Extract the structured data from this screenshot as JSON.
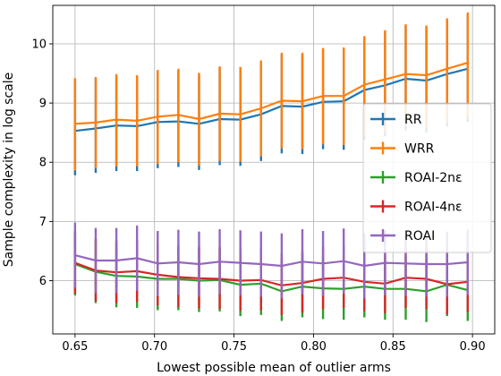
{
  "chart_data": {
    "type": "line",
    "xlabel": "Lowest possible mean of outlier arms",
    "ylabel": "Sample complexity in log scale",
    "xlim": [
      0.636,
      0.914
    ],
    "ylim": [
      5.1,
      10.65
    ],
    "grid": true,
    "legend_position": "center-right",
    "x_ticks": [
      "0.65",
      "0.70",
      "0.75",
      "0.80",
      "0.85",
      "0.90"
    ],
    "y_ticks": [
      "6",
      "7",
      "8",
      "9",
      "10"
    ],
    "x": [
      0.65,
      0.663,
      0.676,
      0.689,
      0.702,
      0.715,
      0.728,
      0.741,
      0.754,
      0.767,
      0.78,
      0.793,
      0.806,
      0.819,
      0.832,
      0.845,
      0.858,
      0.871,
      0.884,
      0.897
    ],
    "series": [
      {
        "name": "RR",
        "color": "#1f77b4",
        "values": [
          8.53,
          8.57,
          8.62,
          8.61,
          8.68,
          8.69,
          8.65,
          8.73,
          8.72,
          8.81,
          8.95,
          8.94,
          9.02,
          9.03,
          9.22,
          9.3,
          9.41,
          9.38,
          9.49,
          9.58
        ],
        "err_low": [
          7.78,
          7.82,
          7.85,
          7.85,
          7.9,
          7.92,
          7.87,
          7.95,
          7.94,
          8.02,
          8.15,
          8.14,
          8.22,
          8.21,
          8.38,
          8.44,
          8.54,
          8.5,
          8.6,
          8.68
        ],
        "err_high": [
          9.4,
          9.42,
          9.46,
          9.44,
          9.53,
          9.55,
          9.48,
          9.59,
          9.58,
          9.69,
          9.82,
          9.82,
          9.9,
          9.91,
          10.1,
          10.2,
          10.3,
          10.28,
          10.4,
          10.5
        ]
      },
      {
        "name": "WRR",
        "color": "#ff7f0e",
        "values": [
          8.65,
          8.67,
          8.72,
          8.7,
          8.77,
          8.8,
          8.73,
          8.82,
          8.81,
          8.91,
          9.04,
          9.03,
          9.12,
          9.12,
          9.31,
          9.4,
          9.49,
          9.47,
          9.58,
          9.68
        ],
        "err_low": [
          7.86,
          7.9,
          7.93,
          7.93,
          7.97,
          8.0,
          7.94,
          8.02,
          8.01,
          8.1,
          8.23,
          8.22,
          8.3,
          8.29,
          8.46,
          8.52,
          8.62,
          8.58,
          8.68,
          8.76
        ],
        "err_high": [
          9.42,
          9.44,
          9.49,
          9.47,
          9.56,
          9.58,
          9.51,
          9.62,
          9.61,
          9.72,
          9.85,
          9.85,
          9.93,
          9.94,
          10.13,
          10.23,
          10.33,
          10.31,
          10.43,
          10.53
        ]
      },
      {
        "name": "ROAI-2nε",
        "color": "#2ca02c",
        "values": [
          6.28,
          6.15,
          6.08,
          6.07,
          6.03,
          6.03,
          6.0,
          6.01,
          5.93,
          5.95,
          5.82,
          5.9,
          5.87,
          5.86,
          5.9,
          5.86,
          5.86,
          5.82,
          5.93,
          5.84
        ],
        "err_low": [
          5.75,
          5.62,
          5.55,
          5.54,
          5.5,
          5.5,
          5.47,
          5.48,
          5.4,
          5.42,
          5.32,
          5.38,
          5.35,
          5.34,
          5.38,
          5.34,
          5.34,
          5.3,
          5.4,
          5.32
        ],
        "err_high": [
          6.82,
          6.7,
          6.64,
          6.62,
          6.58,
          6.57,
          6.54,
          6.55,
          6.48,
          6.5,
          6.37,
          6.45,
          6.42,
          6.41,
          6.45,
          6.41,
          6.41,
          6.37,
          6.48,
          6.39
        ]
      },
      {
        "name": "ROAI-4nε",
        "color": "#d62728",
        "values": [
          6.3,
          6.17,
          6.14,
          6.16,
          6.1,
          6.06,
          6.04,
          6.03,
          6.0,
          6.01,
          5.92,
          5.96,
          6.03,
          6.05,
          5.98,
          5.95,
          6.05,
          6.03,
          5.94,
          5.98
        ],
        "err_low": [
          5.78,
          5.65,
          5.62,
          5.64,
          5.58,
          5.55,
          5.53,
          5.52,
          5.49,
          5.5,
          5.42,
          5.46,
          5.52,
          5.54,
          5.48,
          5.45,
          5.54,
          5.52,
          5.43,
          5.47
        ],
        "err_high": [
          6.84,
          6.71,
          6.68,
          6.7,
          6.64,
          6.6,
          6.58,
          6.57,
          6.54,
          6.55,
          6.46,
          6.5,
          6.57,
          6.59,
          6.52,
          6.49,
          6.59,
          6.57,
          6.48,
          6.52
        ]
      },
      {
        "name": "ROAI",
        "color": "#9467bd",
        "values": [
          6.43,
          6.34,
          6.34,
          6.38,
          6.29,
          6.31,
          6.28,
          6.32,
          6.3,
          6.28,
          6.25,
          6.32,
          6.29,
          6.33,
          6.25,
          6.3,
          6.29,
          6.28,
          6.28,
          6.31
        ],
        "err_low": [
          5.88,
          5.79,
          5.79,
          5.83,
          5.74,
          5.76,
          5.73,
          5.77,
          5.75,
          5.73,
          5.7,
          5.77,
          5.74,
          5.78,
          5.7,
          5.75,
          5.74,
          5.73,
          5.73,
          5.76
        ],
        "err_high": [
          6.98,
          6.89,
          6.89,
          6.93,
          6.84,
          6.86,
          6.83,
          6.87,
          6.85,
          6.83,
          6.8,
          6.87,
          6.84,
          6.88,
          6.8,
          6.85,
          6.84,
          6.83,
          6.83,
          6.86
        ]
      }
    ]
  }
}
